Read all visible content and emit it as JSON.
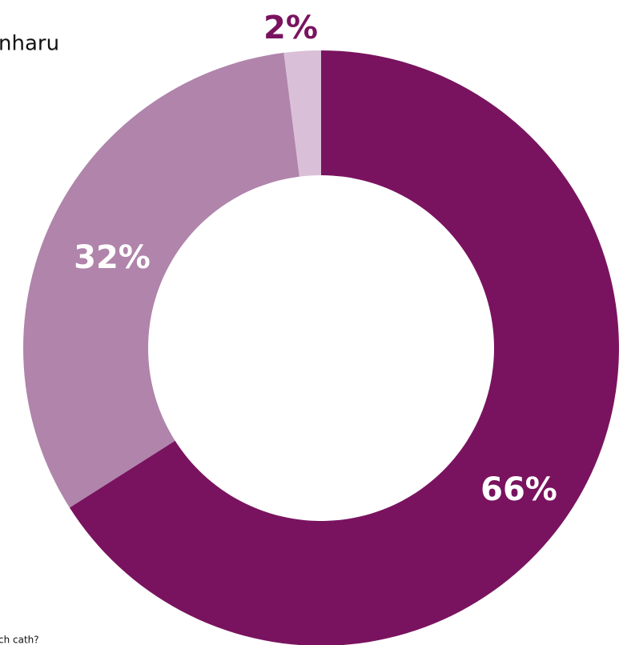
{
  "chart_data": {
    "type": "donut",
    "title": "nharu",
    "note": "ch cath?",
    "values": [
      66,
      32,
      2
    ],
    "value_labels": [
      "66%",
      "32%",
      "2%"
    ],
    "colors": [
      "#79135f",
      "#b084ab",
      "#dabfd8"
    ]
  }
}
